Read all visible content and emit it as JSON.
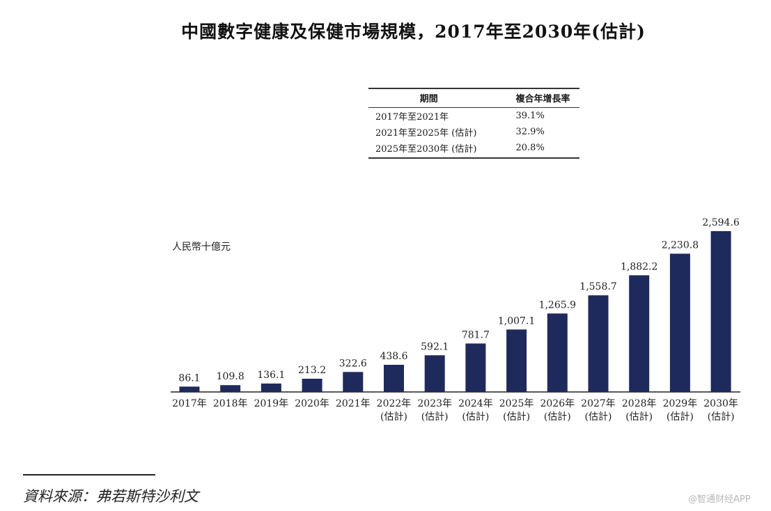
{
  "title": "中國數字健康及保健市場規模，2017年至2030年(估計)",
  "cagr_table": {
    "headers": [
      "期間",
      "複合年增長率"
    ],
    "rows": [
      {
        "period": "2017年至2021年",
        "rate": "39.1%"
      },
      {
        "period": "2021年至2025年 (估計)",
        "rate": "32.9%"
      },
      {
        "period": "2025年至2030年 (估計)",
        "rate": "20.8%"
      }
    ]
  },
  "chart_data": {
    "type": "bar",
    "title": "中國數字健康及保健市場規模，2017年至2030年(估計)",
    "ylabel": "人民幣十億元",
    "xlabel": "",
    "ylim": [
      0,
      2600
    ],
    "grid": false,
    "bar_color": "#1f2a5c",
    "categories": [
      "2017年",
      "2018年",
      "2019年",
      "2020年",
      "2021年",
      "2022年",
      "2023年",
      "2024年",
      "2025年",
      "2026年",
      "2027年",
      "2028年",
      "2029年",
      "2030年"
    ],
    "subcategories": [
      "",
      "",
      "",
      "",
      "",
      "(估計)",
      "(估計)",
      "(估計)",
      "(估計)",
      "(估計)",
      "(估計)",
      "(估計)",
      "(估計)",
      "(估計)"
    ],
    "values": [
      86.1,
      109.8,
      136.1,
      213.2,
      322.6,
      438.6,
      592.1,
      781.7,
      1007.1,
      1265.9,
      1558.7,
      1882.2,
      2230.8,
      2594.6
    ],
    "value_labels": [
      "86.1",
      "109.8",
      "136.1",
      "213.2",
      "322.6",
      "438.6",
      "592.1",
      "781.7",
      "1,007.1",
      "1,265.9",
      "1,558.7",
      "1,882.2",
      "2,230.8",
      "2,594.6"
    ]
  },
  "source": "資料來源：弗若斯特沙利文",
  "watermark": "@智通财经APP"
}
